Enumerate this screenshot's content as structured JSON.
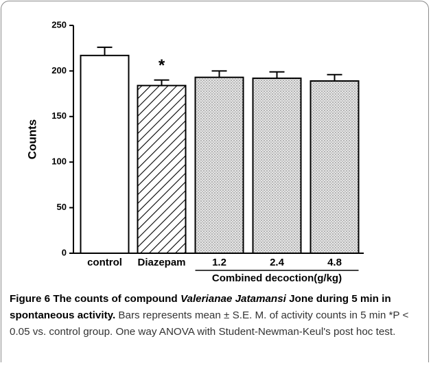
{
  "chart_data": {
    "type": "bar",
    "ylabel": "Counts",
    "categories": [
      "control",
      "Diazepam",
      "1.2",
      "2.4",
      "4.8"
    ],
    "values": [
      217,
      184,
      193,
      192,
      189
    ],
    "errors": [
      9,
      6,
      7,
      7,
      7
    ],
    "bar_styles": [
      "open",
      "hatched",
      "dotted",
      "dotted",
      "dotted"
    ],
    "color": "#000000",
    "ylim": [
      0,
      250
    ],
    "yticks": [
      0,
      50,
      100,
      150,
      200,
      250
    ],
    "annotations": [
      {
        "text": "*",
        "category": "Diazepam"
      }
    ],
    "x_group": {
      "label": "Combined decoction(g/kg)",
      "categories": [
        "1.2",
        "2.4",
        "4.8"
      ]
    }
  },
  "caption": {
    "label": "Figure 6",
    "title_start": "The counts of compound",
    "title_italic": "Valerianae Jatamansi",
    "title_end": "Jone during 5 min in spontaneous activity.",
    "body": "Bars represents mean ± S.E. M. of activity counts in 5 min *P < 0.05 vs. control group. One way ANOVA with Student-Newman-Keul's post hoc test."
  }
}
